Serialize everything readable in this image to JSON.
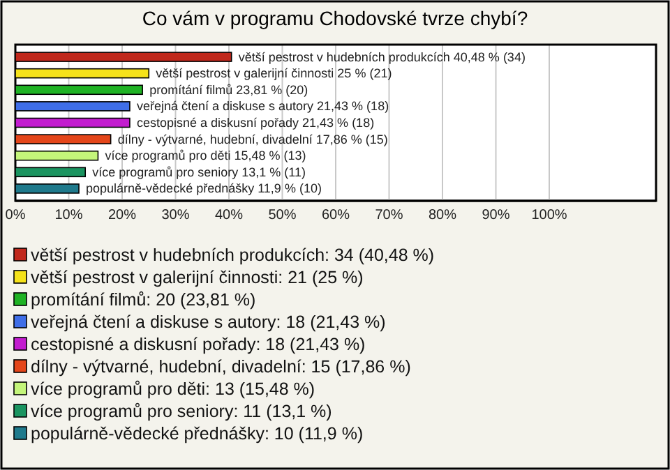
{
  "chart_data": {
    "type": "bar",
    "orientation": "horizontal",
    "title": "Co vám v programu Chodovské tvrze chybí?",
    "categories": [
      null,
      null,
      null,
      null,
      null,
      null,
      null,
      null,
      null
    ],
    "values": [
      40.48,
      25,
      23.81,
      21.43,
      21.43,
      17.86,
      15.48,
      13.1,
      11.9
    ],
    "colors": [
      "#c0281c",
      "#f5e21a",
      "#1fb224",
      "#3f6ee8",
      "#c21ccf",
      "#e4461a",
      "#c4f57a",
      "#1a9460",
      "#1f7a8c"
    ],
    "value_labels": [
      "větší pestrost v hudebních produkcích 40,48 % (34)",
      "větší pestrost v galerijní činnosti 25 % (21)",
      "promítání filmů 23,81 % (20)",
      "veřejná čtení a diskuse s autory 21,43 % (18)",
      "cestopisné a diskusní pořady 21,43 % (18)",
      "dílny - výtvarné, hudební, divadelní 17,86 % (15)",
      "více programů pro děti 15,48 % (13)",
      "více programů pro seniory 13,1 % (11)",
      "populárně-vědecké přednášky 11,9 % (10)"
    ],
    "annotations": [
      "větší pestrost v hudebních produkcích: 34 (40,48 %)",
      "větší pestrost v galerijní činnosti: 21 (25 %)",
      "promítání filmů: 20 (23,81 %)",
      "veřejná čtení a diskuse s autory: 18 (21,43 %)",
      "cestopisné a diskusní pořady: 18 (21,43 %)",
      "dílny - výtvarné, hudební, divadelní: 15 (17,86 %)",
      "více programů pro děti: 13 (15,48 %)",
      "více programů pro seniory: 11 (13,1 %)",
      "populárně-vědecké přednášky: 10 (11,9 %)"
    ],
    "xlim": [
      0,
      120
    ],
    "xticks": [
      {
        "value": 0,
        "label": "0%"
      },
      {
        "value": 10,
        "label": "10%"
      },
      {
        "value": 20,
        "label": "20%"
      },
      {
        "value": 30,
        "label": "30%"
      },
      {
        "value": 40,
        "label": "40%"
      },
      {
        "value": 50,
        "label": "50%"
      },
      {
        "value": 60,
        "label": "60%"
      },
      {
        "value": 70,
        "label": "70%"
      },
      {
        "value": 80,
        "label": "80%"
      },
      {
        "value": 90,
        "label": "90%"
      },
      {
        "value": 100,
        "label": "100%"
      }
    ],
    "grid": "x"
  }
}
